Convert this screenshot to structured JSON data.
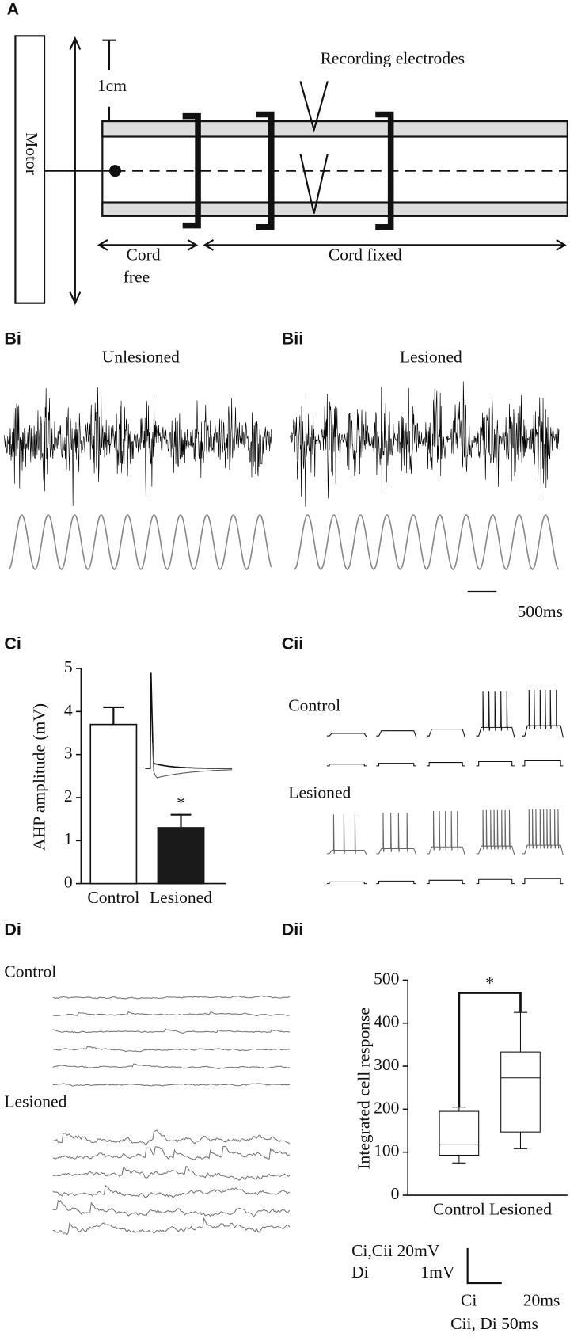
{
  "panels": {
    "A": {
      "label": "A",
      "motor": "Motor",
      "scale": "1cm",
      "electrodes": "Recording electrodes",
      "cord_free": [
        "Cord",
        "free"
      ],
      "cord_fixed": "Cord fixed"
    },
    "Bi": {
      "label": "Bi",
      "title": "Unlesioned"
    },
    "Bii": {
      "label": "Bii",
      "title": "Lesioned"
    },
    "B_scale": "500ms",
    "Ci": {
      "label": "Ci"
    },
    "Cii": {
      "label": "Cii",
      "rows": [
        "Control",
        "Lesioned"
      ]
    },
    "Di": {
      "label": "Di",
      "rows": [
        "Control",
        "Lesioned"
      ]
    },
    "Dii": {
      "label": "Dii"
    },
    "scale_bars": [
      "Ci,Cii 20mV",
      "Di",
      "1mV",
      "Ci",
      "20ms",
      "Cii, Di 50ms"
    ]
  },
  "chart_data": [
    {
      "type": "bar",
      "y_label": "AHP amplitude (mV)",
      "categories": [
        "Control",
        "Lesioned"
      ],
      "values": [
        3.7,
        1.3
      ],
      "errors": [
        0.4,
        0.3
      ],
      "colors": [
        "#ffffff",
        "#1a1a1a"
      ],
      "annotation": "*",
      "ylim": [
        0,
        5
      ],
      "yticks": [
        0,
        1,
        2,
        3,
        4,
        5
      ]
    },
    {
      "type": "box",
      "y_label": "Integrated cell response",
      "categories": [
        "Control",
        "Lesioned"
      ],
      "min": [
        75,
        108
      ],
      "q1": [
        93,
        147
      ],
      "median": [
        117,
        273
      ],
      "q3": [
        195,
        333
      ],
      "max": [
        205,
        425
      ],
      "annotation": "*",
      "ylim": [
        0,
        500
      ],
      "yticks": [
        0,
        100,
        200,
        300,
        400,
        500
      ]
    }
  ]
}
